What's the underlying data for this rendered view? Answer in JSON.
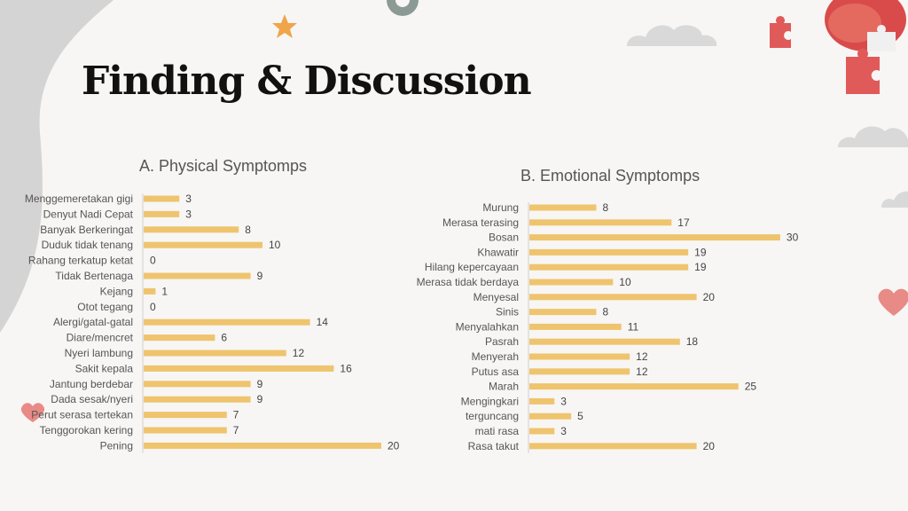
{
  "slide": {
    "title": "Finding & Discussion"
  },
  "colors": {
    "bar": "#efc46e",
    "axis": "#d0d0d0",
    "label": "#555555",
    "value": "#444444"
  },
  "chart_data": [
    {
      "type": "bar",
      "orientation": "horizontal",
      "title": "A. Physical Symptomps",
      "categories": [
        "Menggemeretakan gigi",
        "Denyut Nadi Cepat",
        "Banyak Berkeringat",
        "Duduk tidak tenang",
        "Rahang terkatup ketat",
        "Tidak Bertenaga",
        "Kejang",
        "Otot tegang",
        "Alergi/gatal-gatal",
        "Diare/mencret",
        "Nyeri lambung",
        "Sakit kepala",
        "Jantung berdebar",
        "Dada sesak/nyeri",
        "Perut serasa tertekan",
        "Tenggorokan kering",
        "Pening"
      ],
      "values": [
        3,
        3,
        8,
        10,
        0,
        9,
        1,
        0,
        14,
        6,
        12,
        16,
        9,
        9,
        7,
        7,
        20
      ],
      "data_labels": true,
      "grid": false
    },
    {
      "type": "bar",
      "orientation": "horizontal",
      "title": "B. Emotional Symptomps",
      "categories": [
        "Murung",
        "Merasa terasing",
        "Bosan",
        "Khawatir",
        "Hilang kepercayaan",
        "Merasa tidak berdaya",
        "Menyesal",
        "Sinis",
        "Menyalahkan",
        "Pasrah",
        "Menyerah",
        "Putus asa",
        "Marah",
        "Mengingkari",
        "terguncang",
        "mati rasa",
        "Rasa takut"
      ],
      "values": [
        8,
        17,
        30,
        19,
        19,
        10,
        20,
        8,
        11,
        18,
        12,
        12,
        25,
        3,
        5,
        3,
        20
      ],
      "data_labels": true,
      "grid": false
    }
  ]
}
